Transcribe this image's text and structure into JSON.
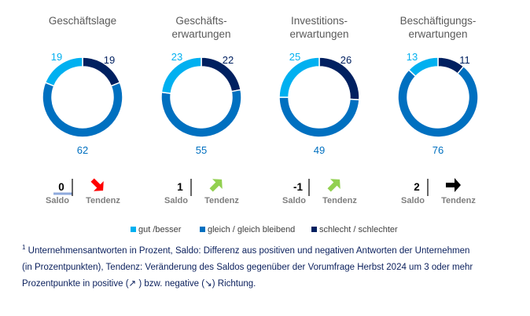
{
  "colors": {
    "gut": "#00b0f0",
    "gleich": "#0070c0",
    "schlecht": "#002060",
    "arrow_positive": "#92d050",
    "arrow_negative": "#ff0000",
    "arrow_neutral": "#000000",
    "title": "#595959",
    "label": "#7f7f7f"
  },
  "chart_data": [
    {
      "type": "pie",
      "variant": "donut",
      "title_lines": [
        "Geschäftslage"
      ],
      "categories": [
        "gut /besser",
        "gleich / gleich bleibend",
        "schlecht / schlechter"
      ],
      "values": [
        19,
        62,
        19
      ],
      "saldo": "0",
      "tendenz": "negative"
    },
    {
      "type": "pie",
      "variant": "donut",
      "title_lines": [
        "Geschäfts-",
        "erwartungen"
      ],
      "categories": [
        "gut /besser",
        "gleich / gleich bleibend",
        "schlecht / schlechter"
      ],
      "values": [
        23,
        55,
        22
      ],
      "saldo": "1",
      "tendenz": "positive"
    },
    {
      "type": "pie",
      "variant": "donut",
      "title_lines": [
        "Investitions-",
        "erwartungen"
      ],
      "categories": [
        "gut /besser",
        "gleich / gleich bleibend",
        "schlecht / schlechter"
      ],
      "values": [
        25,
        49,
        26
      ],
      "saldo": "-1",
      "tendenz": "positive"
    },
    {
      "type": "pie",
      "variant": "donut",
      "title_lines": [
        "Beschäftigungs-",
        "erwartungen"
      ],
      "categories": [
        "gut /besser",
        "gleich / gleich bleibend",
        "schlecht / schlechter"
      ],
      "values": [
        13,
        76,
        11
      ],
      "saldo": "2",
      "tendenz": "neutral"
    }
  ],
  "labels": {
    "saldo": "Saldo",
    "tendenz": "Tendenz"
  },
  "legend": [
    {
      "label": "gut /besser",
      "color": "#00b0f0"
    },
    {
      "label": "gleich / gleich bleibend",
      "color": "#0070c0"
    },
    {
      "label": "schlecht / schlechter",
      "color": "#002060"
    }
  ],
  "footnote": {
    "marker": "1",
    "line1": " Unternehmensantworten in Prozent, Saldo: Differenz aus positiven und negativen Antworten der Unternehmen",
    "line2": "(in Prozentpunkten), Tendenz: Veränderung des Saldos gegenüber der Vorumfrage Herbst 2024 um 3 oder mehr",
    "line3_a": "Prozentpunkte in positive (",
    "arrow_up": "↗",
    "line3_b": " ) bzw. negative (",
    "arrow_down": "↘",
    "line3_c": ") Richtung."
  }
}
